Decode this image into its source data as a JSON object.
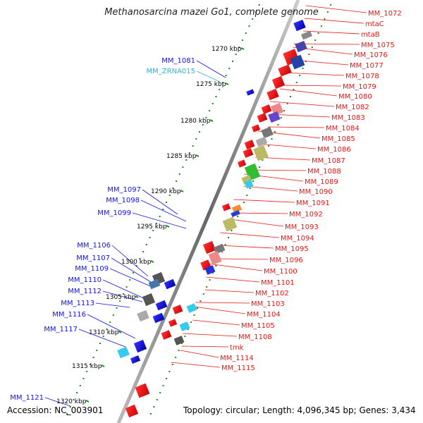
{
  "title": "Methanosarcina mazei Go1, complete genome",
  "footer": {
    "accession": "Accession: NC_003901",
    "summary": "Topology: circular; Length: 4,096,345 bp; Genes: 3,434"
  },
  "scale_labels": [
    "1270 kbp",
    "1275 kbp",
    "1280 kbp",
    "1285 kbp",
    "1290 kbp",
    "1295 kbp",
    "1300 kbp",
    "1305 kbp",
    "1310 kbp",
    "1315 kbp",
    "1320 kbp"
  ],
  "right_labels": [
    "MM_1072",
    "mtaC",
    "mtaB",
    "MM_1075",
    "MM_1076",
    "MM_1077",
    "MM_1078",
    "MM_1079",
    "MM_1080",
    "MM_1082",
    "MM_1083",
    "MM_1084",
    "MM_1085",
    "MM_1086",
    "MM_1087",
    "MM_1088",
    "MM_1089",
    "MM_1090",
    "MM_1091",
    "MM_1092",
    "MM_1093",
    "MM_1094",
    "MM_1095",
    "MM_1096",
    "MM_1100",
    "MM_1101",
    "MM_1102",
    "MM_1103",
    "MM_1104",
    "MM_1105",
    "MM_1108",
    "tmk",
    "MM_1114",
    "MM_1115"
  ],
  "left_labels": [
    "MM_1081",
    "MM_ZRNA015",
    "MM_1097",
    "MM_1098",
    "MM_1099",
    "MM_1106",
    "MM_1107",
    "MM_1109",
    "MM_1110",
    "MM_1112",
    "MM_1113",
    "MM_1116",
    "MM_1117",
    "MM_1121"
  ],
  "colors": {
    "forward_gene": "#ee1111",
    "reverse_gene": "#1111ee",
    "rna_label": "#22b8dd",
    "tick": "#228822",
    "backbone": "#999999"
  }
}
